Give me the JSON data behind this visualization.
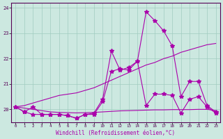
{
  "xlabel": "Windchill (Refroidissement éolien,°C)",
  "background_color": "#cce8e0",
  "grid_color": "#a0ccc0",
  "line_color": "#aa00aa",
  "x_values": [
    0,
    1,
    2,
    3,
    4,
    5,
    6,
    7,
    8,
    9,
    10,
    11,
    12,
    13,
    14,
    15,
    16,
    17,
    18,
    19,
    20,
    21,
    22,
    23
  ],
  "series_high": [
    20.1,
    19.9,
    20.1,
    19.8,
    19.8,
    19.8,
    19.75,
    19.65,
    19.8,
    19.85,
    20.4,
    22.3,
    21.55,
    21.65,
    21.9,
    23.85,
    23.5,
    23.1,
    22.5,
    20.5,
    21.1,
    21.1,
    20.15,
    19.9
  ],
  "series_low": [
    20.1,
    19.9,
    19.8,
    19.8,
    19.8,
    19.8,
    19.75,
    19.65,
    19.8,
    19.8,
    20.3,
    21.5,
    21.6,
    21.55,
    21.9,
    20.15,
    20.6,
    20.6,
    20.55,
    19.85,
    20.4,
    20.5,
    20.1,
    19.85
  ],
  "series_upper_smooth": [
    20.1,
    20.15,
    20.25,
    20.35,
    20.45,
    20.55,
    20.6,
    20.65,
    20.75,
    20.85,
    21.0,
    21.15,
    21.3,
    21.45,
    21.6,
    21.75,
    21.85,
    22.0,
    22.1,
    22.25,
    22.35,
    22.45,
    22.55,
    22.6
  ],
  "series_lower_smooth": [
    20.1,
    20.05,
    20.0,
    19.95,
    19.9,
    19.88,
    19.87,
    19.86,
    19.87,
    19.88,
    19.9,
    19.92,
    19.94,
    19.95,
    19.96,
    19.97,
    19.98,
    19.98,
    19.99,
    19.99,
    19.99,
    20.0,
    20.0,
    19.95
  ],
  "ylim": [
    19.5,
    24.2
  ],
  "yticks": [
    20,
    21,
    22,
    23,
    24
  ],
  "xlim": [
    -0.5,
    23.5
  ]
}
